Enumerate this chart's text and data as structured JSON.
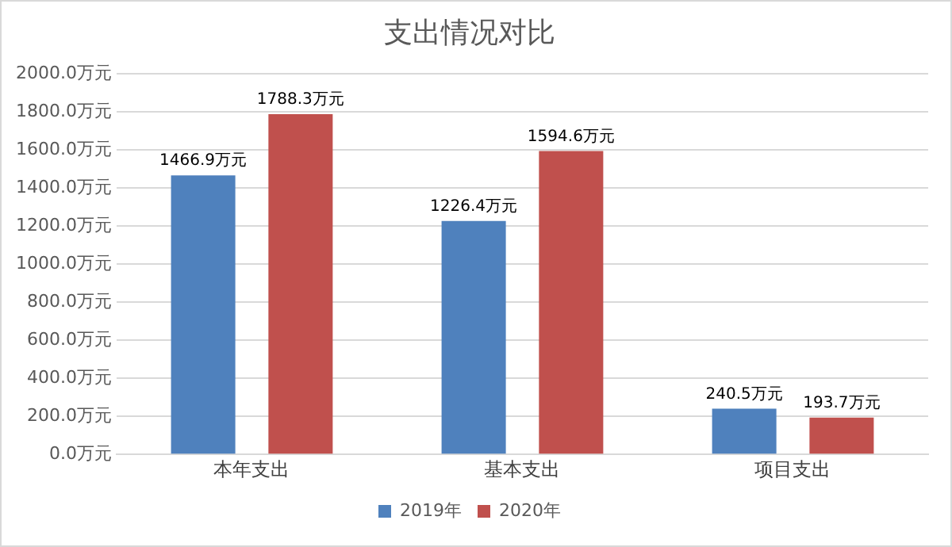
{
  "chart_data": {
    "type": "bar",
    "title": "支出情况对比",
    "categories": [
      "本年支出",
      "基本支出",
      "项目支出"
    ],
    "series": [
      {
        "name": "2019年",
        "color": "#4f81bd",
        "values": [
          1466.9,
          1226.4,
          240.5
        ],
        "value_labels": [
          "1466.9万元",
          "1226.4万元",
          "240.5万元"
        ]
      },
      {
        "name": "2020年",
        "color": "#c0504d",
        "values": [
          1788.3,
          1594.6,
          193.7
        ],
        "value_labels": [
          "1788.3万元",
          "1594.6万元",
          "193.7万元"
        ]
      }
    ],
    "ylim": [
      0,
      2000
    ],
    "yticks": [
      {
        "value": 0,
        "label": "0.0万元"
      },
      {
        "value": 200,
        "label": "200.0万元"
      },
      {
        "value": 400,
        "label": "400.0万元"
      },
      {
        "value": 600,
        "label": "600.0万元"
      },
      {
        "value": 800,
        "label": "800.0万元"
      },
      {
        "value": 1000,
        "label": "1000.0万元"
      },
      {
        "value": 1200,
        "label": "1200.0万元"
      },
      {
        "value": 1400,
        "label": "1400.0万元"
      },
      {
        "value": 1600,
        "label": "1600.0万元"
      },
      {
        "value": 1800,
        "label": "1800.0万元"
      },
      {
        "value": 2000,
        "label": "2000.0万元"
      }
    ],
    "grid": "y",
    "legend": "bottom"
  }
}
